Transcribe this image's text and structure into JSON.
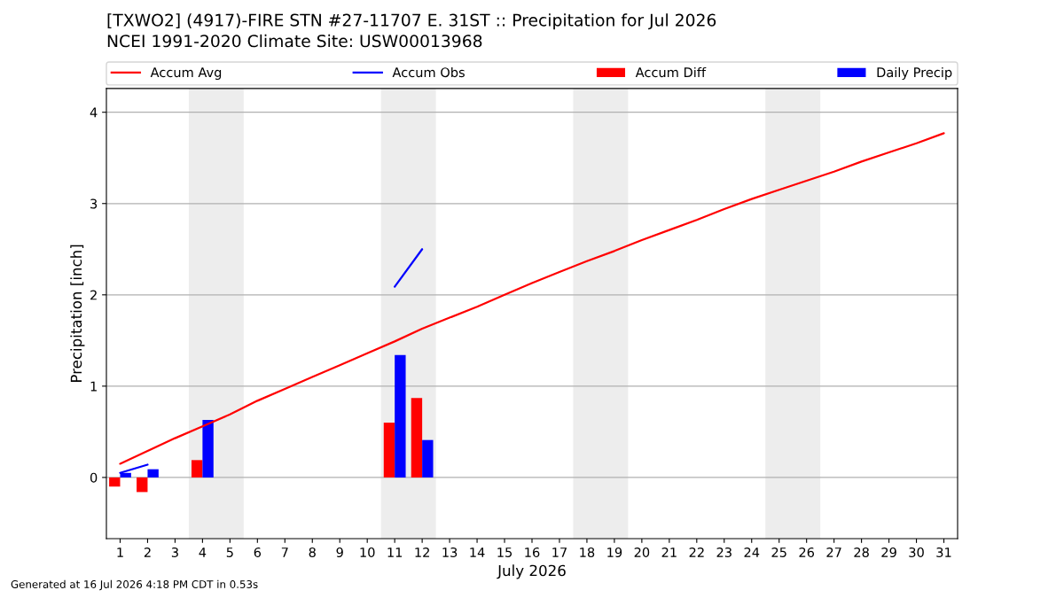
{
  "chart_data": {
    "type": "bar",
    "title": "[TXWO2] (4917)-FIRE STN #27-11707 E. 31ST :: Precipitation for Jul 2026",
    "subtitle": "NCEI 1991-2020 Climate Site: USW00013968",
    "xlabel": "July 2026",
    "ylabel": "Precipitation [inch]",
    "x": [
      1,
      2,
      3,
      4,
      5,
      6,
      7,
      8,
      9,
      10,
      11,
      12,
      13,
      14,
      15,
      16,
      17,
      18,
      19,
      20,
      21,
      22,
      23,
      24,
      25,
      26,
      27,
      28,
      29,
      30,
      31
    ],
    "series": [
      {
        "name": "Accum Avg",
        "type": "line",
        "color": "#ff0000",
        "values": [
          0.15,
          0.29,
          0.43,
          0.56,
          0.69,
          0.84,
          0.97,
          1.1,
          1.23,
          1.36,
          1.49,
          1.63,
          1.75,
          1.87,
          2.0,
          2.13,
          2.25,
          2.37,
          2.48,
          2.6,
          2.71,
          2.82,
          2.94,
          3.05,
          3.15,
          3.25,
          3.35,
          3.46,
          3.56,
          3.66,
          3.77
        ]
      },
      {
        "name": "Accum Obs",
        "type": "line",
        "color": "#0000ff",
        "values": [
          0.05,
          0.14,
          null,
          null,
          null,
          null,
          null,
          null,
          null,
          null,
          2.09,
          2.5,
          null,
          null,
          null,
          null,
          null,
          null,
          null,
          null,
          null,
          null,
          null,
          null,
          null,
          null,
          null,
          null,
          null,
          null,
          null
        ]
      },
      {
        "name": "Accum Diff",
        "color": "#ff0000",
        "values": [
          -0.1,
          -0.16,
          null,
          0.19,
          null,
          null,
          null,
          null,
          null,
          null,
          0.6,
          0.87,
          null,
          null,
          null,
          null,
          null,
          null,
          null,
          null,
          null,
          null,
          null,
          null,
          null,
          null,
          null,
          null,
          null,
          null,
          null
        ]
      },
      {
        "name": "Daily Precip",
        "color": "#0000ff",
        "values": [
          0.05,
          0.09,
          null,
          0.63,
          null,
          null,
          null,
          null,
          null,
          null,
          1.34,
          0.41,
          null,
          null,
          null,
          null,
          null,
          null,
          null,
          null,
          null,
          null,
          null,
          null,
          null,
          null,
          null,
          null,
          null,
          null,
          null
        ]
      }
    ],
    "xlim": [
      0.5,
      31.5
    ],
    "xticks": [
      1,
      2,
      3,
      4,
      5,
      6,
      7,
      8,
      9,
      10,
      11,
      12,
      13,
      14,
      15,
      16,
      17,
      18,
      19,
      20,
      21,
      22,
      23,
      24,
      25,
      26,
      27,
      28,
      29,
      30,
      31
    ],
    "ylim": [
      -0.67,
      4.26
    ],
    "yticks": [
      0,
      1,
      2,
      3,
      4
    ],
    "bands": [
      {
        "axis": "x",
        "from": 3.5,
        "to": 5.5,
        "color": "#ededed"
      },
      {
        "axis": "x",
        "from": 10.5,
        "to": 12.5,
        "color": "#ededed"
      },
      {
        "axis": "x",
        "from": 17.5,
        "to": 19.5,
        "color": "#ededed"
      },
      {
        "axis": "x",
        "from": 24.5,
        "to": 26.5,
        "color": "#ededed"
      }
    ],
    "grid": "y",
    "legend": "top",
    "line_style": "solid",
    "annotations": [
      "Generated at 16 Jul 2026 4:18 PM CDT in 0.53s"
    ]
  }
}
